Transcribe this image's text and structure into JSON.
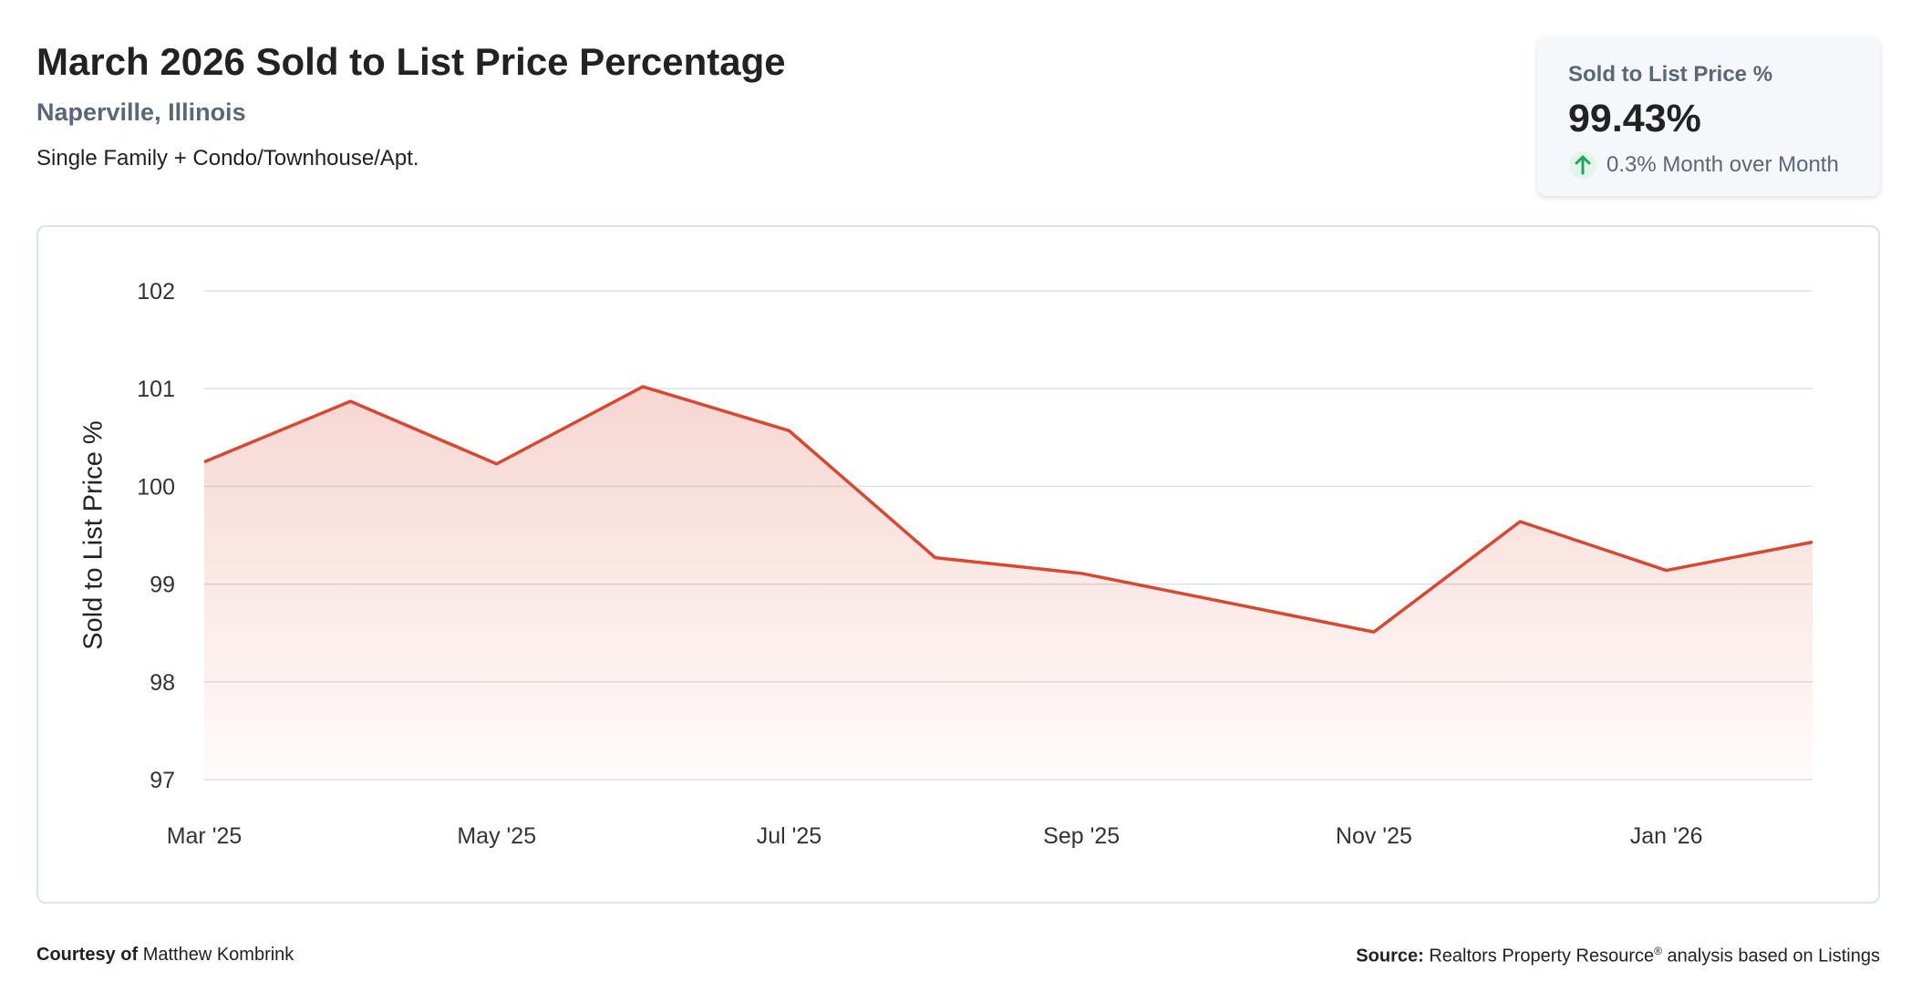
{
  "header": {
    "title": "March 2026 Sold to List Price Percentage",
    "location": "Naperville, Illinois",
    "property_types": "Single Family + Condo/Townhouse/Apt."
  },
  "stat_card": {
    "label": "Sold to List Price %",
    "value": "99.43%",
    "change": "0.3% Month over Month",
    "change_icon": "arrow-up-icon",
    "change_color": "#22a45d"
  },
  "chart_data": {
    "type": "area",
    "x": [
      "Mar '25",
      "Apr '25",
      "May '25",
      "Jun '25",
      "Jul '25",
      "Aug '25",
      "Sep '25",
      "Oct '25",
      "Nov '25",
      "Dec '25",
      "Jan '26",
      "Feb '26"
    ],
    "x_tick_labels": [
      "Mar '25",
      "May '25",
      "Jul '25",
      "Sep '25",
      "Nov '25",
      "Jan '26"
    ],
    "series": [
      {
        "values": [
          100.25,
          100.87,
          100.23,
          101.02,
          100.57,
          99.27,
          99.11,
          98.81,
          98.51,
          99.64,
          99.14,
          99.43
        ],
        "color": "#d9472f"
      }
    ],
    "ylabel": "Sold to List Price %",
    "xlabel": "",
    "ylim": [
      97,
      102
    ],
    "y_ticks": [
      97,
      98,
      99,
      100,
      101,
      102
    ],
    "grid": true,
    "fill_color": "#d9472f"
  },
  "footer": {
    "courtesy_label": "Courtesy of",
    "courtesy_name": "Matthew Kombrink",
    "source_label": "Source:",
    "source_text_1": "Realtors Property Resource",
    "source_registered": "®",
    "source_text_2": " analysis based on Listings"
  }
}
